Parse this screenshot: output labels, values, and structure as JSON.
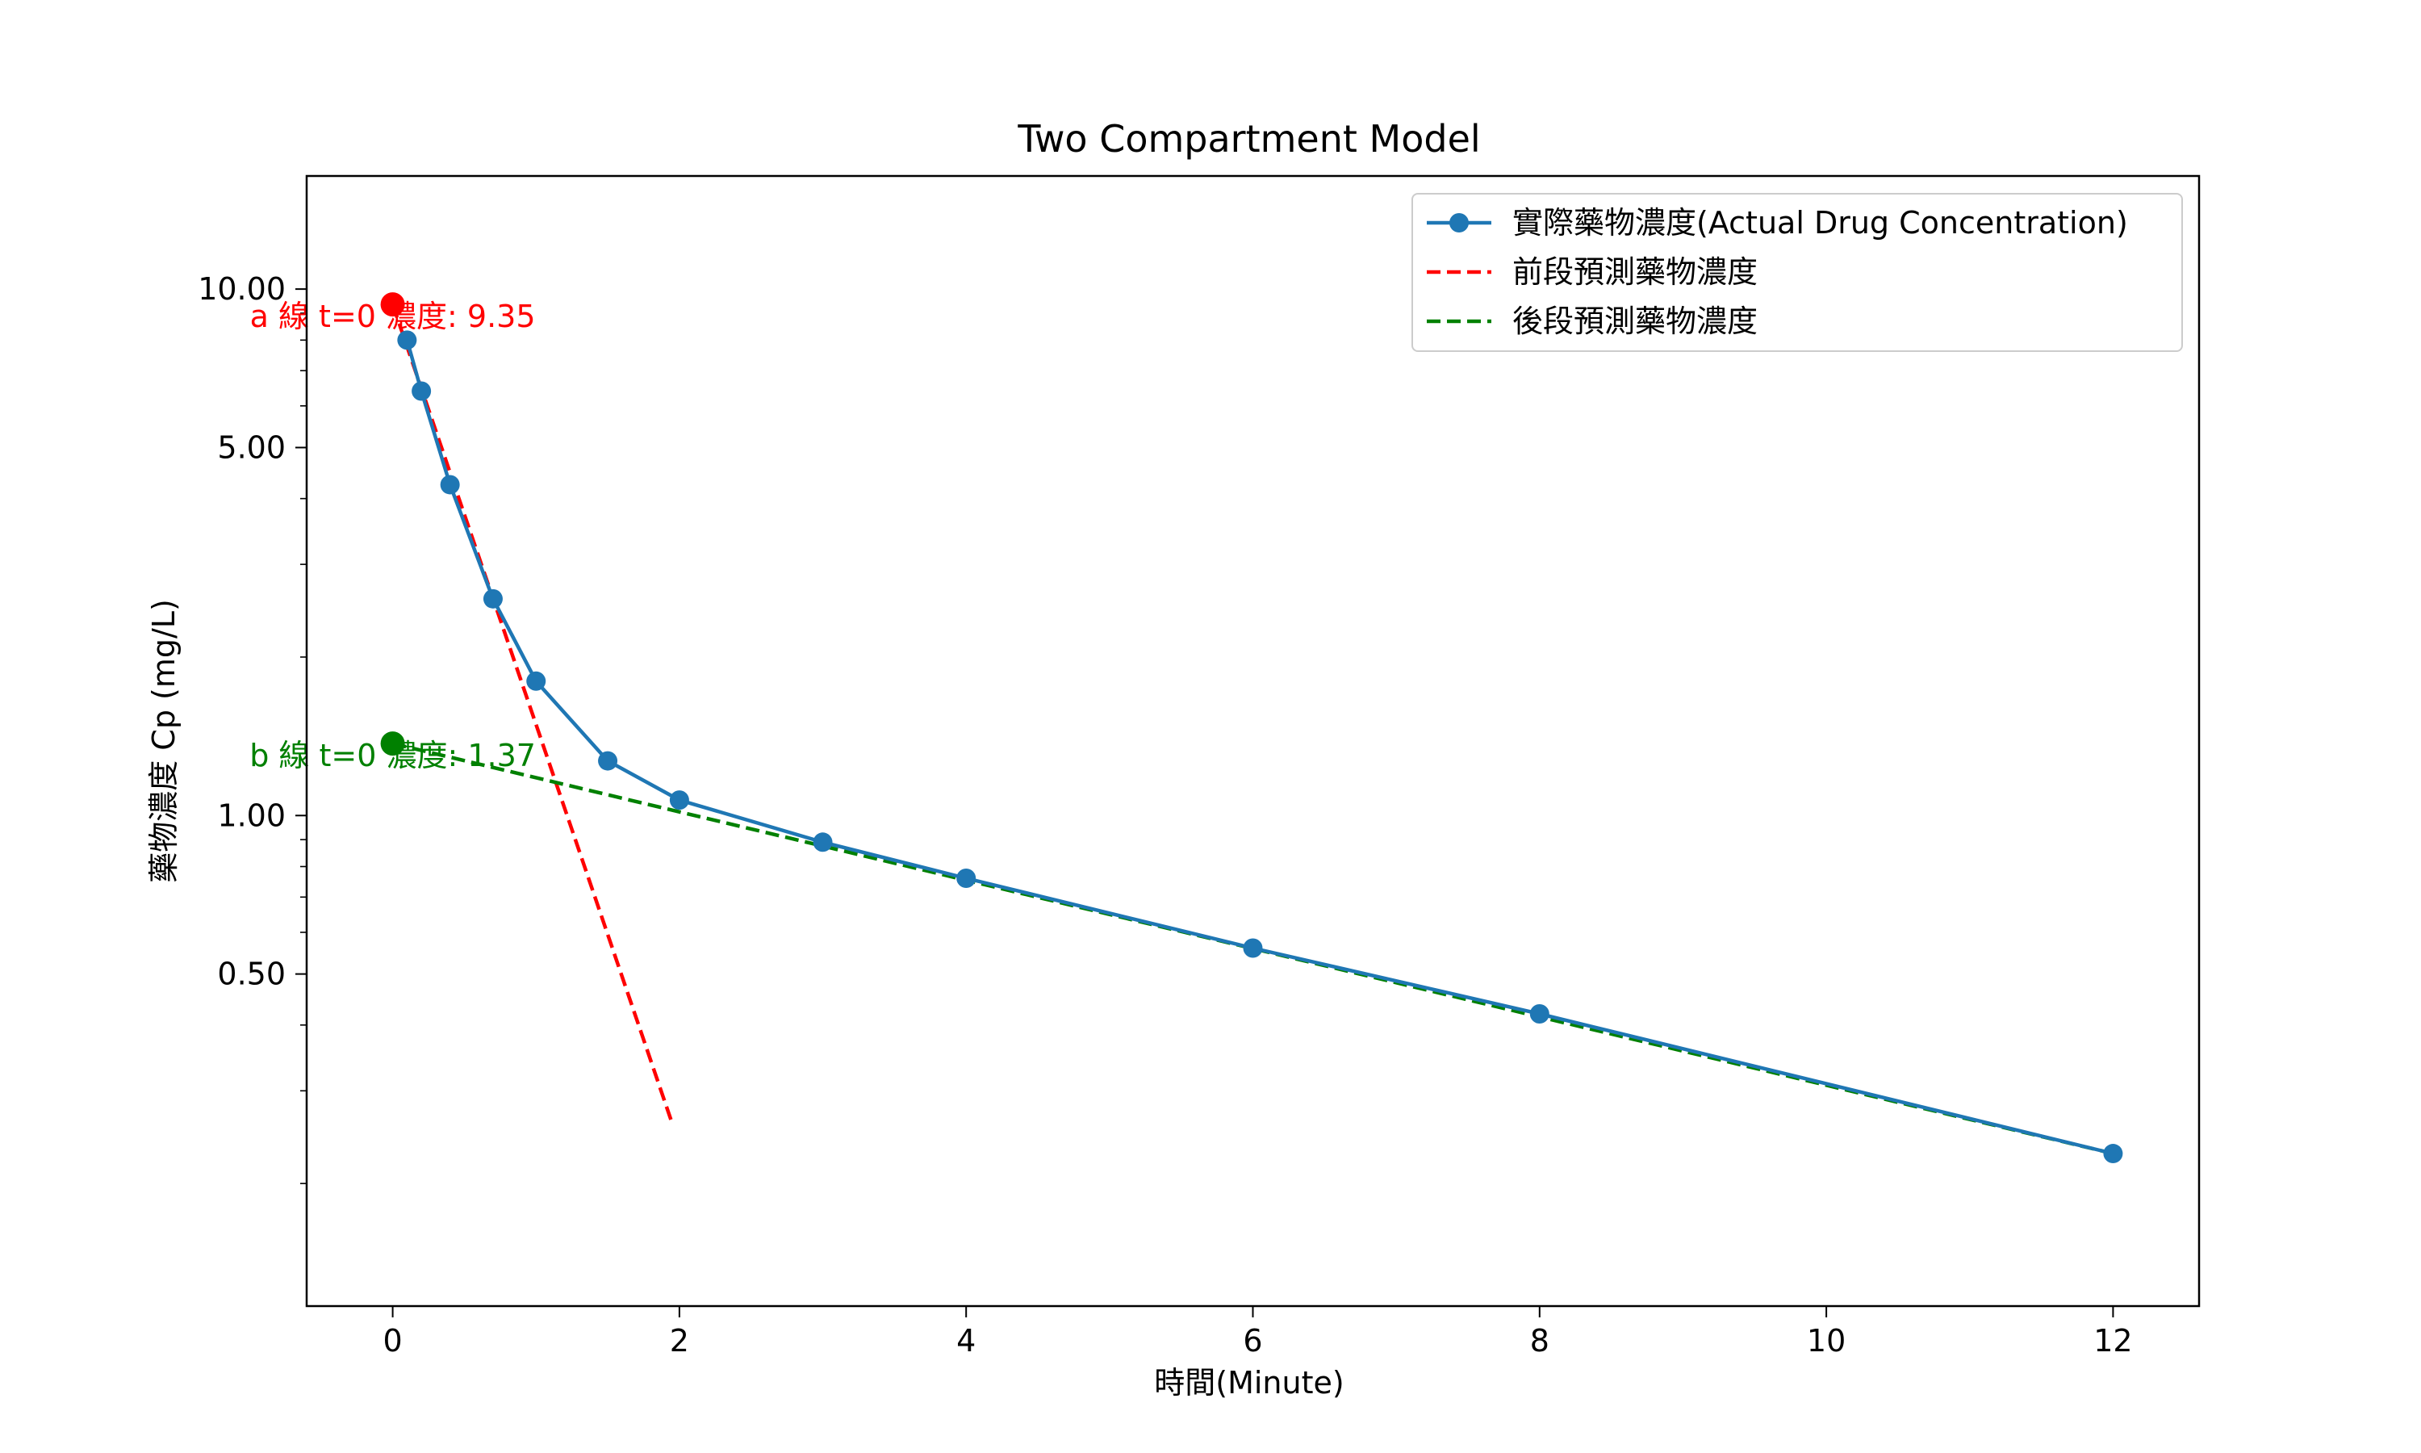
{
  "chart_data": {
    "type": "line",
    "title": "Two Compartment Model",
    "xlabel": "時間(Minute)",
    "ylabel": "藥物濃度 Cp (mg/L)",
    "yscale": "log",
    "xlim": [
      -0.6,
      12.6
    ],
    "ylim": [
      0.117,
      16.4
    ],
    "x_ticks": [
      0,
      2,
      4,
      6,
      8,
      10,
      12
    ],
    "x_tick_labels": [
      "0",
      "2",
      "4",
      "6",
      "8",
      "10",
      "12"
    ],
    "y_ticks": [
      0.5,
      1.0,
      5.0,
      10.0
    ],
    "y_tick_labels": [
      "0.50",
      "1.00",
      "5.00",
      "10.00"
    ],
    "grid": false,
    "legend_position": "top-right",
    "series": [
      {
        "name": "實際藥物濃度(Actual Drug Concentration)",
        "style": "solid-marker",
        "color": "#1f77b4",
        "x": [
          0.1,
          0.2,
          0.4,
          0.7,
          1.0,
          1.5,
          2.0,
          3.0,
          4.0,
          6.0,
          8.0,
          12.0
        ],
        "y": [
          8.0,
          6.4,
          4.25,
          2.58,
          1.8,
          1.27,
          1.07,
          0.89,
          0.76,
          0.56,
          0.42,
          0.228
        ]
      },
      {
        "name": "前段預測藥物濃度",
        "style": "dashed",
        "color": "#ff0000",
        "x": [
          0.0,
          1.95
        ],
        "y": [
          9.35,
          0.26
        ]
      },
      {
        "name": "後段預測藥物濃度",
        "style": "dashed",
        "color": "#008000",
        "x": [
          0.0,
          12.0
        ],
        "y": [
          1.37,
          0.228
        ]
      }
    ],
    "points": [
      {
        "name": "a-intercept",
        "x": 0,
        "y": 9.35,
        "color": "#ff0000"
      },
      {
        "name": "b-intercept",
        "x": 0,
        "y": 1.37,
        "color": "#008000"
      }
    ],
    "annotations": [
      {
        "text": "a 線 t=0 濃度: 9.35",
        "x": 0,
        "y": 9.35,
        "color": "#ff0000"
      },
      {
        "text": "b 線 t=0 濃度: 1.37",
        "x": 0,
        "y": 1.37,
        "color": "#008000"
      }
    ]
  }
}
